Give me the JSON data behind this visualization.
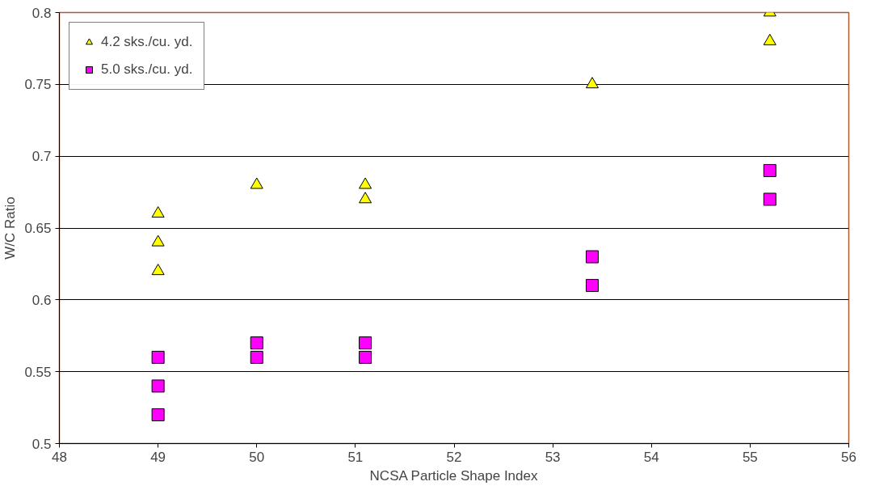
{
  "chart_data": {
    "type": "scatter",
    "xlabel": "NCSA Particle Shape Index",
    "ylabel": "W/C Ratio",
    "xlim": [
      48,
      56
    ],
    "xticks": [
      48,
      49,
      50,
      51,
      52,
      53,
      54,
      55,
      56
    ],
    "ylim": [
      0.5,
      0.8
    ],
    "yticks": [
      0.5,
      0.55,
      0.6,
      0.65,
      0.7,
      0.75,
      0.8
    ],
    "grid": "y",
    "legend": "top left",
    "series": [
      {
        "name": "4.2 sks./cu. yd.",
        "color": "#ffff00",
        "marker": "triangle",
        "x": [
          49,
          49,
          49,
          50,
          51.1,
          51.1,
          53.4,
          55.2,
          55.2
        ],
        "values": [
          0.66,
          0.64,
          0.62,
          0.68,
          0.68,
          0.67,
          0.75,
          0.8,
          0.78
        ]
      },
      {
        "name": "5.0 sks./cu. yd.",
        "color": "#ff00ff",
        "marker": "square",
        "x": [
          49,
          49,
          49,
          50,
          50,
          51.1,
          51.1,
          53.4,
          53.4,
          55.2,
          55.2
        ],
        "values": [
          0.56,
          0.54,
          0.52,
          0.57,
          0.56,
          0.57,
          0.56,
          0.63,
          0.61,
          0.69,
          0.67
        ]
      }
    ]
  }
}
